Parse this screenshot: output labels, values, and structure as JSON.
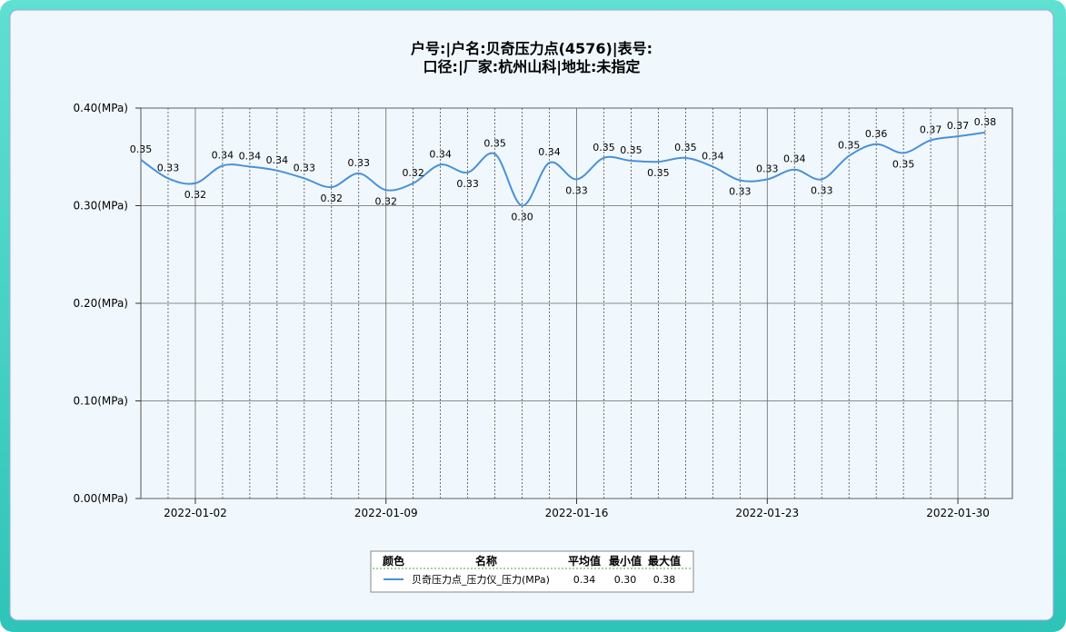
{
  "chart_data": {
    "type": "line",
    "title": "户号:|户名:贝奇压力点(4576)|表号:",
    "subtitle": "口径:|厂家:杭州山科|地址:未指定",
    "x": [
      "2021-12-31",
      "2022-01-01",
      "2022-01-02",
      "2022-01-03",
      "2022-01-04",
      "2022-01-05",
      "2022-01-06",
      "2022-01-07",
      "2022-01-08",
      "2022-01-09",
      "2022-01-10",
      "2022-01-11",
      "2022-01-12",
      "2022-01-13",
      "2022-01-14",
      "2022-01-15",
      "2022-01-16",
      "2022-01-17",
      "2022-01-18",
      "2022-01-19",
      "2022-01-20",
      "2022-01-21",
      "2022-01-22",
      "2022-01-23",
      "2022-01-24",
      "2022-01-25",
      "2022-01-26",
      "2022-01-27",
      "2022-01-28",
      "2022-01-29",
      "2022-01-30",
      "2022-01-31"
    ],
    "series": [
      {
        "name": "贝奇压力点_压力仪_压力(MPa)",
        "color": "#4a90d9",
        "values": [
          0.347,
          0.328,
          0.323,
          0.341,
          0.34,
          0.336,
          0.328,
          0.319,
          0.333,
          0.316,
          0.323,
          0.342,
          0.334,
          0.353,
          0.3,
          0.344,
          0.327,
          0.349,
          0.346,
          0.345,
          0.349,
          0.34,
          0.326,
          0.327,
          0.337,
          0.327,
          0.351,
          0.363,
          0.354,
          0.367,
          0.371,
          0.375
        ],
        "value_labels": [
          "0.35",
          "0.33",
          "0.32",
          "0.34",
          "0.34",
          "0.34",
          "0.33",
          "0.32",
          "0.33",
          "0.32",
          "0.32",
          "0.34",
          "0.33",
          "0.35",
          "0.30",
          "0.34",
          "0.33",
          "0.35",
          "0.35",
          "0.35",
          "0.35",
          "0.34",
          "0.33",
          "0.33",
          "0.34",
          "0.33",
          "0.35",
          "0.36",
          "0.35",
          "0.37",
          "0.37",
          "0.38"
        ]
      }
    ],
    "xlim": [
      "2021-12-31",
      "2022-02-01"
    ],
    "xticks": [
      "2022-01-02",
      "2022-01-09",
      "2022-01-16",
      "2022-01-23",
      "2022-01-30"
    ],
    "ylim": [
      0,
      0.4
    ],
    "yticks": [
      {
        "value": 0,
        "label": "0.00(MPa)"
      },
      {
        "value": 0.1,
        "label": "0.10(MPa)"
      },
      {
        "value": 0.2,
        "label": "0.20(MPa)"
      },
      {
        "value": 0.3,
        "label": "0.30(MPa)"
      },
      {
        "value": 0.4,
        "label": "0.40(MPa)"
      }
    ],
    "grid": true,
    "legend_table": {
      "headers": [
        "颜色",
        "名称",
        "平均值",
        "最小值",
        "最大值"
      ],
      "rows": [
        {
          "avg": "0.34",
          "min": "0.30",
          "max": "0.38"
        }
      ]
    }
  }
}
